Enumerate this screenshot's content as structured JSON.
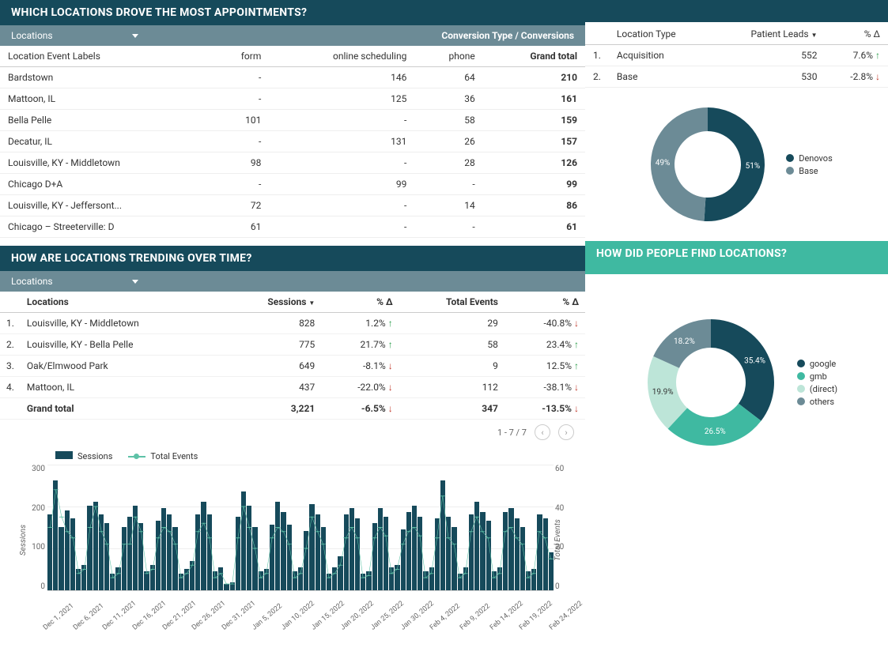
{
  "section1": {
    "title": "WHICH LOCATIONS DROVE THE MOST APPOINTMENTS?",
    "dropdown_label": "Locations",
    "conv_header": "Conversion Type / Conversions",
    "columns": [
      "Location Event Labels",
      "form",
      "online scheduling",
      "phone",
      "Grand total"
    ],
    "rows": [
      {
        "label": "Bardstown",
        "form": "-",
        "online": "146",
        "phone": "64",
        "total": "210"
      },
      {
        "label": "Mattoon, IL",
        "form": "-",
        "online": "125",
        "phone": "36",
        "total": "161"
      },
      {
        "label": "Bella Pelle",
        "form": "101",
        "online": "-",
        "phone": "58",
        "total": "159"
      },
      {
        "label": "Decatur, IL",
        "form": "-",
        "online": "131",
        "phone": "26",
        "total": "157"
      },
      {
        "label": "Louisville, KY - Middletown",
        "form": "98",
        "online": "-",
        "phone": "28",
        "total": "126"
      },
      {
        "label": "Chicago D+A",
        "form": "-",
        "online": "99",
        "phone": "-",
        "total": "99"
      },
      {
        "label": "Louisville, KY - Jeffersont...",
        "form": "72",
        "online": "-",
        "phone": "14",
        "total": "86"
      },
      {
        "label": "Chicago – Streeterville: D",
        "form": "61",
        "online": "-",
        "phone": "-",
        "total": "61"
      }
    ]
  },
  "side1": {
    "columns": [
      "Location Type",
      "Patient Leads",
      "% Δ"
    ],
    "rows": [
      {
        "idx": "1.",
        "label": "Acquisition",
        "leads": "552",
        "delta": "7.6%",
        "dir": "up"
      },
      {
        "idx": "2.",
        "label": "Base",
        "leads": "530",
        "delta": "-2.8%",
        "dir": "down"
      }
    ],
    "donut": {
      "slices": [
        {
          "name": "Denovos",
          "value": 51,
          "color": "#164a5b",
          "label": "51%"
        },
        {
          "name": "Base",
          "value": 49,
          "color": "#6c8b96",
          "label": "49%"
        }
      ],
      "inner_radius": 42,
      "outer_radius": 72,
      "bg": "#ffffff"
    }
  },
  "section2": {
    "title": "HOW ARE LOCATIONS TRENDING OVER TIME?",
    "dropdown_label": "Locations",
    "columns": [
      "Locations",
      "Sessions",
      "% Δ",
      "Total Events",
      "% Δ"
    ],
    "rows": [
      {
        "idx": "1.",
        "loc": "Louisville, KY - Middletown",
        "sessions": "828",
        "d1": "1.2%",
        "d1dir": "up",
        "events": "29",
        "d2": "-40.8%",
        "d2dir": "down"
      },
      {
        "idx": "2.",
        "loc": "Louisville, KY - Bella Pelle",
        "sessions": "775",
        "d1": "21.7%",
        "d1dir": "up",
        "events": "58",
        "d2": "23.4%",
        "d2dir": "up"
      },
      {
        "idx": "3.",
        "loc": "Oak/Elmwood Park",
        "sessions": "649",
        "d1": "-8.1%",
        "d1dir": "down",
        "events": "9",
        "d2": "12.5%",
        "d2dir": "up"
      },
      {
        "idx": "4.",
        "loc": "Mattoon, IL",
        "sessions": "437",
        "d1": "-22.0%",
        "d1dir": "down",
        "events": "112",
        "d2": "-38.1%",
        "d2dir": "down"
      }
    ],
    "grand": {
      "label": "Grand total",
      "sessions": "3,221",
      "d1": "-6.5%",
      "d1dir": "down",
      "events": "347",
      "d2": "-13.5%",
      "d2dir": "down"
    },
    "pagination": "1 - 7 / 7",
    "chart": {
      "legend": [
        "Sessions",
        "Total Events"
      ],
      "y_label": "Sessions",
      "y2_label": "Total Events",
      "y_ticks": [
        "300",
        "200",
        "100",
        "0"
      ],
      "y2_ticks": [
        "60",
        "40",
        "20",
        "0"
      ],
      "y_max": 300,
      "y2_max": 60,
      "bar_color": "#164a5b",
      "line_color": "#5ec2a7",
      "x_labels": [
        "Dec 1, 2021",
        "Dec 6, 2021",
        "Dec 11, 2021",
        "Dec 16, 2021",
        "Dec 21, 2021",
        "Dec 26, 2021",
        "Dec 31, 2021",
        "Jan 5, 2022",
        "Jan 10, 2022",
        "Jan 15, 2022",
        "Jan 20, 2022",
        "Jan 25, 2022",
        "Jan 30, 2022",
        "Feb 4, 2022",
        "Feb 9, 2022",
        "Feb 14, 2022",
        "Feb 19, 2022",
        "Feb 24, 2022"
      ],
      "bars": [
        180,
        260,
        150,
        190,
        170,
        50,
        60,
        200,
        210,
        180,
        160,
        40,
        55,
        150,
        175,
        200,
        160,
        45,
        60,
        165,
        195,
        180,
        150,
        40,
        50,
        70,
        180,
        210,
        180,
        45,
        55,
        15,
        18,
        175,
        235,
        200,
        150,
        45,
        50,
        155,
        210,
        185,
        155,
        45,
        55,
        140,
        205,
        180,
        150,
        40,
        55,
        80,
        180,
        195,
        170,
        40,
        45,
        160,
        195,
        175,
        55,
        60,
        145,
        185,
        200,
        175,
        45,
        55,
        170,
        260,
        175,
        150,
        40,
        55,
        180,
        210,
        185,
        165,
        45,
        55,
        185,
        195,
        170,
        150,
        45,
        50,
        180,
        170,
        90
      ],
      "line": [
        30,
        48,
        35,
        28,
        25,
        8,
        10,
        30,
        40,
        28,
        22,
        6,
        8,
        22,
        22,
        35,
        28,
        8,
        10,
        25,
        30,
        28,
        22,
        6,
        8,
        12,
        28,
        32,
        25,
        6,
        8,
        3,
        3,
        25,
        40,
        30,
        20,
        6,
        8,
        25,
        30,
        28,
        22,
        6,
        8,
        20,
        35,
        28,
        22,
        6,
        8,
        12,
        25,
        30,
        25,
        6,
        7,
        25,
        30,
        26,
        8,
        10,
        22,
        28,
        30,
        26,
        6,
        8,
        25,
        45,
        25,
        22,
        6,
        8,
        28,
        35,
        28,
        25,
        6,
        8,
        28,
        30,
        25,
        22,
        6,
        8,
        28,
        25,
        15
      ]
    }
  },
  "section3": {
    "title": "HOW DID PEOPLE FIND LOCATIONS?",
    "donut": {
      "slices": [
        {
          "name": "google",
          "value": 35.4,
          "color": "#164a5b",
          "label": "35.4%"
        },
        {
          "name": "gmb",
          "value": 26.5,
          "color": "#3fb9a1",
          "label": "26.5%"
        },
        {
          "name": "(direct)",
          "value": 19.9,
          "color": "#bde5d8",
          "label": "19.9%"
        },
        {
          "name": "others",
          "value": 18.2,
          "color": "#6c8b96",
          "label": "18.2%"
        }
      ],
      "inner_radius": 44,
      "outer_radius": 80
    }
  }
}
